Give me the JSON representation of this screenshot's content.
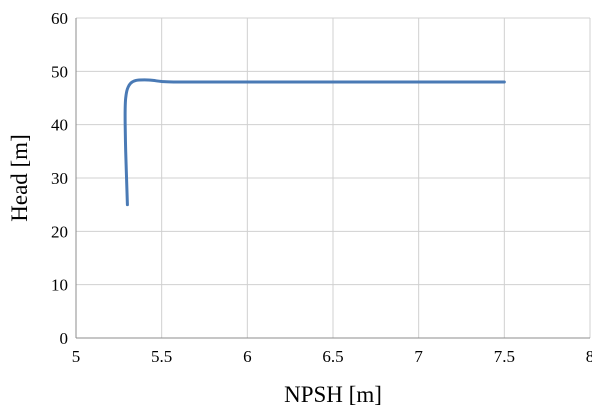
{
  "chart_data": {
    "type": "line",
    "title": "",
    "xlabel": "NPSH [m]",
    "ylabel": "Head [m]",
    "xlim": [
      5,
      8
    ],
    "ylim": [
      0,
      60
    ],
    "xticks": [
      5,
      5.5,
      6,
      6.5,
      7,
      7.5,
      8
    ],
    "yticks": [
      0,
      10,
      20,
      30,
      40,
      50,
      60
    ],
    "xtick_labels": [
      "5",
      "5.5",
      "6",
      "6.5",
      "7",
      "7.5",
      "8"
    ],
    "ytick_labels": [
      "0",
      "10",
      "20",
      "30",
      "40",
      "50",
      "60"
    ],
    "grid": "on",
    "legend": "none",
    "series": [
      {
        "color": "#4a7ab5",
        "x": [
          5.3,
          5.295,
          5.29,
          5.287,
          5.287,
          5.29,
          5.3,
          5.32,
          5.35,
          5.4,
          5.45,
          5.5,
          5.6,
          6.0,
          6.5,
          7.0,
          7.5
        ],
        "y": [
          25,
          30,
          35,
          40,
          43,
          45,
          46.7,
          47.8,
          48.3,
          48.4,
          48.3,
          48.1,
          48.0,
          48.0,
          48.0,
          48.0,
          48.0
        ]
      }
    ]
  }
}
